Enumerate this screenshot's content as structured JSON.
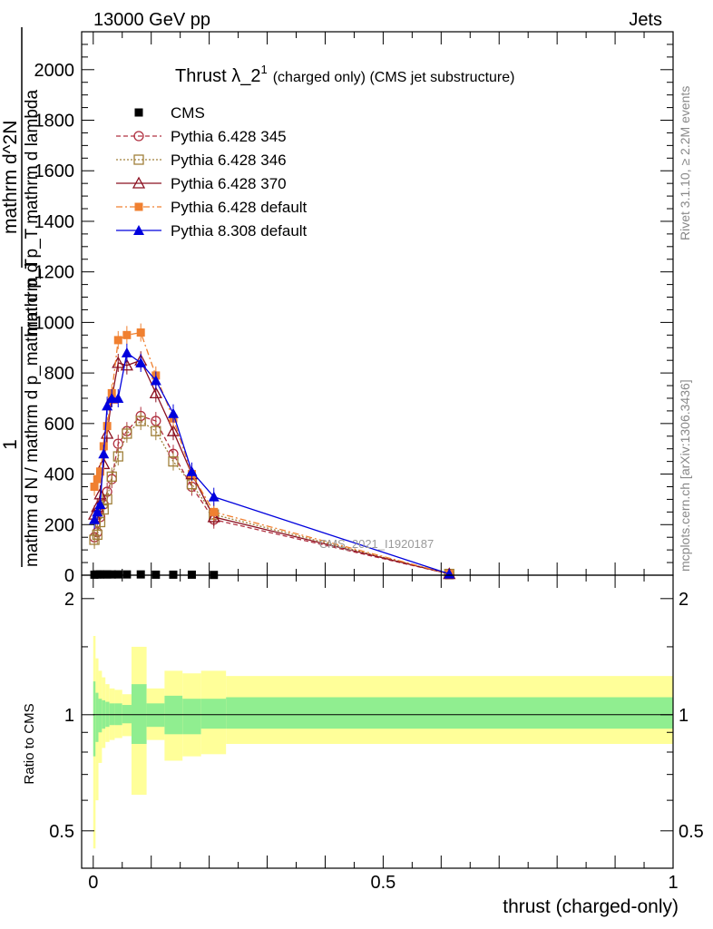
{
  "header": {
    "energy_label": "13000 GeV pp",
    "process_label": "Jets"
  },
  "side_labels": {
    "rivet": "Rivet 3.1.10, ≥ 2.2M events",
    "mcplots": "mcplots.cern.ch [arXiv:1306.3436]"
  },
  "watermark": "CMS_2021_I1920187",
  "chart_data": [
    {
      "type": "line",
      "title_main": "Thrust λ_2",
      "title_sup": "1",
      "title_suffix": "(charged only) (CMS jet substructure)",
      "ylabel_numerator": "1",
      "ylabel_denominator": "mathrm d N / mathrm d p_mathrm d p_T",
      "ylabel_inner_top": "mathrm d^2N",
      "ylabel_inner_bottom": "mathrm d p_T mathrm d lambda",
      "xlim": [
        -0.02,
        1.0
      ],
      "ylim": [
        0,
        2150
      ],
      "yticks": [
        0,
        200,
        400,
        600,
        800,
        1000,
        1200,
        1400,
        1600,
        1800,
        2000
      ],
      "ytick_labels": [
        "0",
        "200",
        "400",
        "600",
        "800",
        "1000",
        "1200",
        "1400",
        "1600",
        "1800",
        "2000"
      ],
      "legend_position": "top-left",
      "series": [
        {
          "name": "CMS",
          "color": "#000000",
          "marker": "square",
          "line": "none",
          "x": [
            0.002,
            0.007,
            0.012,
            0.018,
            0.024,
            0.032,
            0.043,
            0.058,
            0.082,
            0.108,
            0.138,
            0.17,
            0.208,
            0.614
          ],
          "values": [
            2,
            3,
            3,
            3,
            3,
            3,
            3,
            3,
            3,
            2,
            2,
            2,
            1,
            0
          ]
        },
        {
          "name": "Pythia 6.428 345",
          "color": "#b03040",
          "marker": "open-circle",
          "line": "dashed",
          "x": [
            0.002,
            0.007,
            0.012,
            0.018,
            0.024,
            0.032,
            0.043,
            0.058,
            0.082,
            0.108,
            0.138,
            0.17,
            0.208,
            0.614
          ],
          "values": [
            150,
            170,
            230,
            280,
            330,
            380,
            520,
            570,
            630,
            610,
            480,
            350,
            220,
            5
          ]
        },
        {
          "name": "Pythia 6.428 346",
          "color": "#a0803a",
          "marker": "open-square",
          "line": "dotted",
          "x": [
            0.002,
            0.007,
            0.012,
            0.018,
            0.024,
            0.032,
            0.043,
            0.058,
            0.082,
            0.108,
            0.138,
            0.17,
            0.208,
            0.614
          ],
          "values": [
            140,
            160,
            210,
            260,
            300,
            390,
            470,
            560,
            610,
            570,
            450,
            360,
            240,
            5
          ]
        },
        {
          "name": "Pythia 6.428 370",
          "color": "#8b1020",
          "marker": "open-triangle",
          "line": "solid",
          "x": [
            0.002,
            0.007,
            0.012,
            0.018,
            0.024,
            0.032,
            0.043,
            0.058,
            0.082,
            0.108,
            0.138,
            0.17,
            0.208,
            0.614
          ],
          "values": [
            240,
            270,
            320,
            440,
            560,
            700,
            840,
            830,
            850,
            720,
            570,
            400,
            230,
            5
          ]
        },
        {
          "name": "Pythia 6.428 default",
          "color": "#f08030",
          "marker": "filled-square",
          "line": "dashdot",
          "x": [
            0.002,
            0.007,
            0.012,
            0.018,
            0.024,
            0.032,
            0.043,
            0.058,
            0.082,
            0.108,
            0.138,
            0.17,
            0.208,
            0.614
          ],
          "values": [
            350,
            380,
            410,
            510,
            590,
            720,
            930,
            950,
            960,
            790,
            620,
            400,
            250,
            5
          ]
        },
        {
          "name": "Pythia 8.308 default",
          "color": "#0000dd",
          "marker": "filled-triangle",
          "line": "solid",
          "x": [
            0.002,
            0.007,
            0.012,
            0.018,
            0.024,
            0.032,
            0.043,
            0.058,
            0.082,
            0.108,
            0.138,
            0.17,
            0.208,
            0.614
          ],
          "values": [
            220,
            250,
            280,
            480,
            670,
            700,
            700,
            880,
            840,
            770,
            640,
            410,
            310,
            5
          ]
        }
      ]
    },
    {
      "type": "area",
      "ylabel": "Ratio to CMS",
      "xlabel": "thrust (charged-only)",
      "xlim": [
        -0.02,
        1.0
      ],
      "ylim": [
        0.4,
        2.3
      ],
      "log_scale_y": true,
      "xticks": [
        0,
        0.5,
        1
      ],
      "xtick_labels": [
        "0",
        "0.5",
        "1"
      ],
      "yticks": [
        0.5,
        1,
        2
      ],
      "ytick_labels": [
        "0.5",
        "1",
        "2"
      ],
      "bands": {
        "bin_edges": [
          0.0,
          0.004,
          0.009,
          0.015,
          0.021,
          0.028,
          0.037,
          0.05,
          0.066,
          0.092,
          0.123,
          0.154,
          0.186,
          0.229,
          1.0
        ],
        "stat_lower": [
          0.78,
          0.85,
          0.9,
          0.92,
          0.93,
          0.94,
          0.94,
          0.95,
          0.84,
          0.93,
          0.89,
          0.89,
          0.92,
          0.92
        ],
        "stat_upper": [
          1.22,
          1.14,
          1.1,
          1.09,
          1.08,
          1.07,
          1.07,
          1.06,
          1.2,
          1.07,
          1.12,
          1.1,
          1.1,
          1.11
        ],
        "total_lower": [
          0.45,
          0.6,
          0.75,
          0.82,
          0.85,
          0.86,
          0.87,
          0.88,
          0.62,
          0.86,
          0.76,
          0.78,
          0.79,
          0.84
        ],
        "total_upper": [
          1.6,
          1.4,
          1.3,
          1.25,
          1.2,
          1.17,
          1.16,
          1.13,
          1.5,
          1.17,
          1.3,
          1.28,
          1.3,
          1.26
        ],
        "stat_color": "#90ee90",
        "total_color": "#ffff99"
      }
    }
  ]
}
